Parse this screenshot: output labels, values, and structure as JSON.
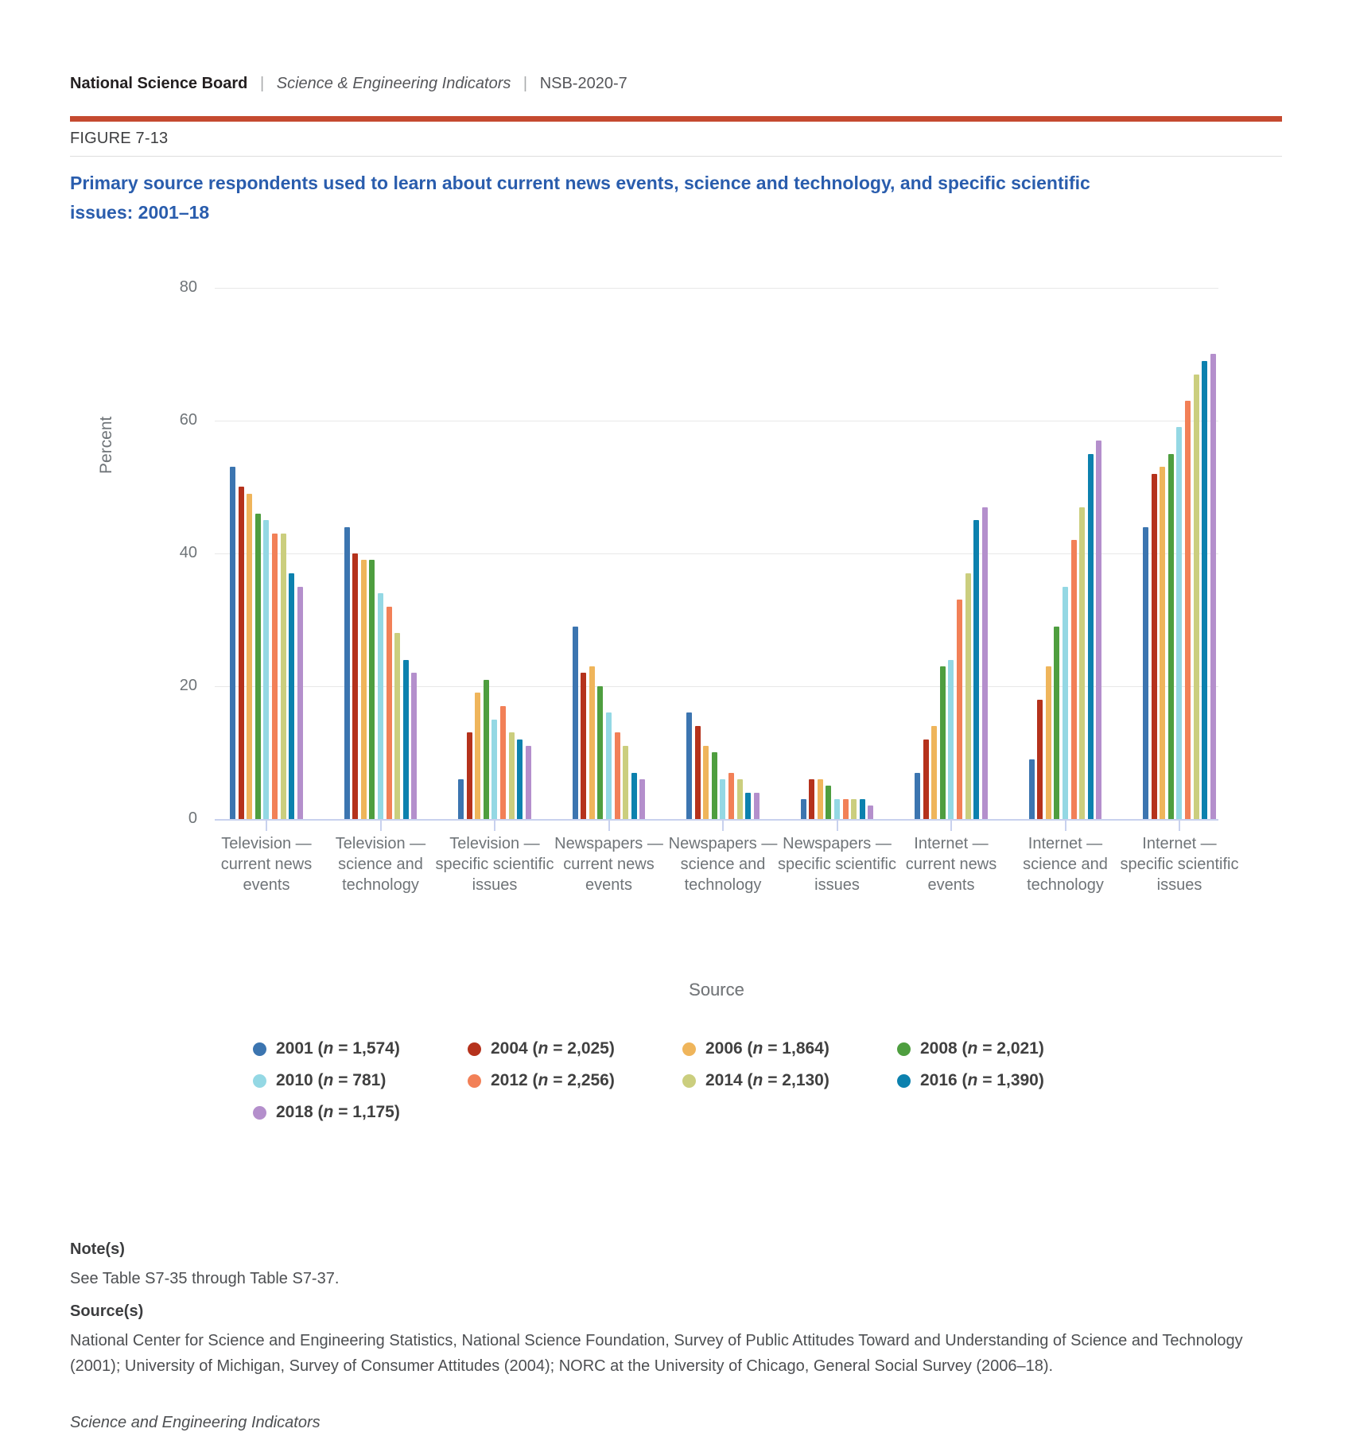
{
  "header": {
    "org": "National Science Board",
    "separator": "|",
    "publication": "Science & Engineering Indicators",
    "report_id": "NSB-2020-7",
    "figure_label": "FIGURE 7-13",
    "title": "Primary source respondents used to learn about current news events, science and technology, and specific scientific issues: 2001–18"
  },
  "chart_data": {
    "type": "bar",
    "title": "Primary source respondents used to learn about current news events, science and technology, and specific scientific issues: 2001–18",
    "xlabel": "Source",
    "ylabel": "Percent",
    "ylim": [
      0,
      80
    ],
    "yticks": [
      0,
      20,
      40,
      60,
      80
    ],
    "grid": true,
    "legend_position": "bottom",
    "categories": [
      "Television — current news events",
      "Television — science and technology",
      "Television — specific scientific issues",
      "Newspapers — current news events",
      "Newspapers — science and technology",
      "Newspapers — specific scientific issues",
      "Internet — current news events",
      "Internet — science and technology",
      "Internet — specific scientific issues"
    ],
    "series": [
      {
        "year": "2001",
        "n": "1,574",
        "color": "#3c75b0",
        "values": [
          53,
          44,
          6,
          29,
          16,
          3,
          7,
          9,
          44
        ]
      },
      {
        "year": "2004",
        "n": "2,025",
        "color": "#b5321c",
        "values": [
          50,
          40,
          13,
          22,
          14,
          6,
          12,
          18,
          52
        ]
      },
      {
        "year": "2006",
        "n": "1,864",
        "color": "#efb55b",
        "values": [
          49,
          39,
          19,
          23,
          11,
          6,
          14,
          23,
          53
        ]
      },
      {
        "year": "2008",
        "n": "2,021",
        "color": "#4e9e3f",
        "values": [
          46,
          39,
          21,
          20,
          10,
          5,
          23,
          29,
          55
        ]
      },
      {
        "year": "2010",
        "n": "781",
        "color": "#94d8e4",
        "values": [
          45,
          34,
          15,
          16,
          6,
          3,
          24,
          35,
          59
        ]
      },
      {
        "year": "2012",
        "n": "2,256",
        "color": "#f28057",
        "values": [
          43,
          32,
          17,
          13,
          7,
          3,
          33,
          42,
          63
        ]
      },
      {
        "year": "2014",
        "n": "2,130",
        "color": "#cbce7e",
        "values": [
          43,
          28,
          13,
          11,
          6,
          3,
          37,
          47,
          67
        ]
      },
      {
        "year": "2016",
        "n": "1,390",
        "color": "#0c81ae",
        "values": [
          37,
          24,
          12,
          7,
          4,
          3,
          45,
          55,
          69
        ]
      },
      {
        "year": "2018",
        "n": "1,175",
        "color": "#b48fcc",
        "values": [
          35,
          22,
          11,
          6,
          4,
          2,
          47,
          57,
          70
        ]
      }
    ]
  },
  "legend": {
    "title": "Source",
    "n_symbol": "n"
  },
  "notes": {
    "notes_heading": "Note(s)",
    "notes_body": "See Table S7-35 through Table S7-37.",
    "sources_heading": "Source(s)",
    "sources_body": "National Center for Science and Engineering Statistics, National Science Foundation, Survey of Public Attitudes Toward and Understanding of Science and Technology (2001); University of Michigan, Survey of Consumer Attitudes (2004); NORC at the University of Chicago, General Social Survey (2006–18).",
    "footer_italic": "Science and Engineering Indicators"
  }
}
